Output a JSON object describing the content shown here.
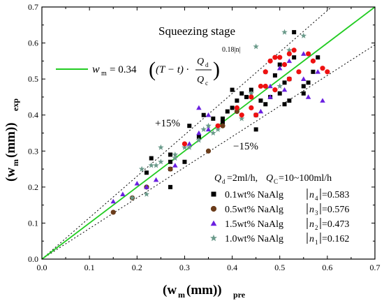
{
  "chart_data": {
    "type": "scatter",
    "title": "Squeezing stage",
    "xlabel": {
      "main": "(w",
      "sub1": "m",
      "mid": "(mm))",
      "sub2": "pre"
    },
    "ylabel": {
      "main": "(w",
      "sub1": "m",
      "mid": "(mm))",
      "sub2": "exp"
    },
    "xlim": [
      0.0,
      0.7
    ],
    "ylim": [
      0.0,
      0.7
    ],
    "xticks": [
      "0.0",
      "0.1",
      "0.2",
      "0.3",
      "0.4",
      "0.5",
      "0.6",
      "0.7"
    ],
    "yticks": [
      "0.0",
      "0.1",
      "0.2",
      "0.3",
      "0.4",
      "0.5",
      "0.6",
      "0.7"
    ],
    "formula": {
      "lhs": "w",
      "lhs_sub": "m",
      "eq": "= 0.34",
      "term": "(T − t) ·",
      "num": "Q",
      "num_sub": "d",
      "den": "Q",
      "den_sub": "c",
      "exp": "0.18|n|"
    },
    "annotations": {
      "upper": "+15%",
      "lower": "−15%"
    },
    "legend_header": {
      "q1": "Q",
      "q1_sub": "d",
      "q1_val": "=2ml/h,",
      "q2": "Q",
      "q2_sub": "C",
      "q2_val": "=10~100ml/h"
    },
    "series": [
      {
        "name": "0.1wt% NaAlg",
        "marker": "square",
        "color": "#000000",
        "n_label": "n",
        "n_sub": "4",
        "n_value": "=0.583",
        "points": [
          [
            0.23,
            0.28
          ],
          [
            0.27,
            0.25
          ],
          [
            0.31,
            0.37
          ],
          [
            0.33,
            0.34
          ],
          [
            0.34,
            0.4
          ],
          [
            0.36,
            0.39
          ],
          [
            0.38,
            0.39
          ],
          [
            0.39,
            0.41
          ],
          [
            0.4,
            0.42
          ],
          [
            0.4,
            0.47
          ],
          [
            0.41,
            0.44
          ],
          [
            0.42,
            0.46
          ],
          [
            0.43,
            0.45
          ],
          [
            0.44,
            0.47
          ],
          [
            0.45,
            0.36
          ],
          [
            0.45,
            0.4
          ],
          [
            0.46,
            0.44
          ],
          [
            0.47,
            0.43
          ],
          [
            0.48,
            0.45
          ],
          [
            0.49,
            0.51
          ],
          [
            0.5,
            0.46
          ],
          [
            0.5,
            0.54
          ],
          [
            0.51,
            0.43
          ],
          [
            0.51,
            0.49
          ],
          [
            0.52,
            0.5
          ],
          [
            0.52,
            0.44
          ],
          [
            0.53,
            0.63
          ],
          [
            0.53,
            0.56
          ],
          [
            0.55,
            0.48
          ],
          [
            0.55,
            0.46
          ],
          [
            0.56,
            0.49
          ],
          [
            0.57,
            0.52
          ],
          [
            0.58,
            0.56
          ],
          [
            0.27,
            0.29
          ],
          [
            0.27,
            0.27
          ],
          [
            0.22,
            0.24
          ],
          [
            0.27,
            0.2
          ],
          [
            0.3,
            0.27
          ],
          [
            0.38,
            0.38
          ]
        ]
      },
      {
        "name": "0.5wt% NaAlg",
        "marker": "circle",
        "color": "#6b3c1a",
        "n_label": "n",
        "n_sub": "3",
        "n_value": "=0.576",
        "points": [
          [
            0.15,
            0.13
          ],
          [
            0.19,
            0.17
          ],
          [
            0.22,
            0.2
          ],
          [
            0.27,
            0.25
          ],
          [
            0.35,
            0.3
          ],
          [
            0.38,
            0.37
          ],
          [
            0.41,
            0.41
          ]
        ]
      },
      {
        "name": "1.5wt% NaAlg",
        "marker": "triangle",
        "color": "#6a1fe0",
        "n_label": "n",
        "n_sub": "2",
        "n_value": "=0.473",
        "points": [
          [
            0.15,
            0.16
          ],
          [
            0.17,
            0.18
          ],
          [
            0.2,
            0.21
          ],
          [
            0.22,
            0.2
          ],
          [
            0.24,
            0.22
          ],
          [
            0.28,
            0.26
          ],
          [
            0.31,
            0.32
          ],
          [
            0.33,
            0.35
          ],
          [
            0.33,
            0.42
          ],
          [
            0.35,
            0.36
          ],
          [
            0.35,
            0.4
          ],
          [
            0.46,
            0.41
          ],
          [
            0.48,
            0.45
          ],
          [
            0.48,
            0.48
          ],
          [
            0.5,
            0.53
          ],
          [
            0.51,
            0.47
          ],
          [
            0.52,
            0.55
          ],
          [
            0.55,
            0.5
          ],
          [
            0.55,
            0.57
          ],
          [
            0.56,
            0.45
          ],
          [
            0.58,
            0.52
          ],
          [
            0.59,
            0.44
          ]
        ]
      },
      {
        "name": "1.0wt% NaAlg",
        "marker": "star",
        "color": "#6a9a8a",
        "n_label": "n",
        "n_sub": "1",
        "n_value": "=0.162",
        "points": [
          [
            0.19,
            0.17
          ],
          [
            0.21,
            0.25
          ],
          [
            0.22,
            0.18
          ],
          [
            0.23,
            0.26
          ],
          [
            0.24,
            0.26
          ],
          [
            0.25,
            0.31
          ],
          [
            0.25,
            0.27
          ],
          [
            0.28,
            0.29
          ],
          [
            0.28,
            0.28
          ],
          [
            0.3,
            0.31
          ],
          [
            0.31,
            0.31
          ],
          [
            0.33,
            0.33
          ],
          [
            0.34,
            0.36
          ],
          [
            0.35,
            0.37
          ],
          [
            0.36,
            0.35
          ],
          [
            0.37,
            0.36
          ],
          [
            0.42,
            0.39
          ],
          [
            0.44,
            0.46
          ],
          [
            0.45,
            0.59
          ],
          [
            0.47,
            0.52
          ],
          [
            0.5,
            0.48
          ],
          [
            0.51,
            0.63
          ],
          [
            0.52,
            0.58
          ],
          [
            0.55,
            0.62
          ]
        ]
      },
      {
        "name": "",
        "marker": "circle",
        "color": "#ee1111",
        "points": [
          [
            0.3,
            0.32
          ],
          [
            0.37,
            0.37
          ],
          [
            0.41,
            0.42
          ],
          [
            0.42,
            0.4
          ],
          [
            0.44,
            0.42
          ],
          [
            0.44,
            0.45
          ],
          [
            0.45,
            0.4
          ],
          [
            0.46,
            0.48
          ],
          [
            0.47,
            0.48
          ],
          [
            0.47,
            0.52
          ],
          [
            0.48,
            0.55
          ],
          [
            0.49,
            0.56
          ],
          [
            0.49,
            0.47
          ],
          [
            0.5,
            0.56
          ],
          [
            0.51,
            0.54
          ],
          [
            0.52,
            0.57
          ],
          [
            0.52,
            0.5
          ],
          [
            0.53,
            0.58
          ],
          [
            0.54,
            0.52
          ],
          [
            0.56,
            0.57
          ],
          [
            0.57,
            0.55
          ],
          [
            0.59,
            0.53
          ],
          [
            0.6,
            0.52
          ]
        ]
      }
    ],
    "fit_line": {
      "color": "#22cc22",
      "range": [
        0.0,
        0.7
      ]
    },
    "bounds": {
      "upper_factor": 1.15,
      "lower_factor": 0.85
    }
  }
}
